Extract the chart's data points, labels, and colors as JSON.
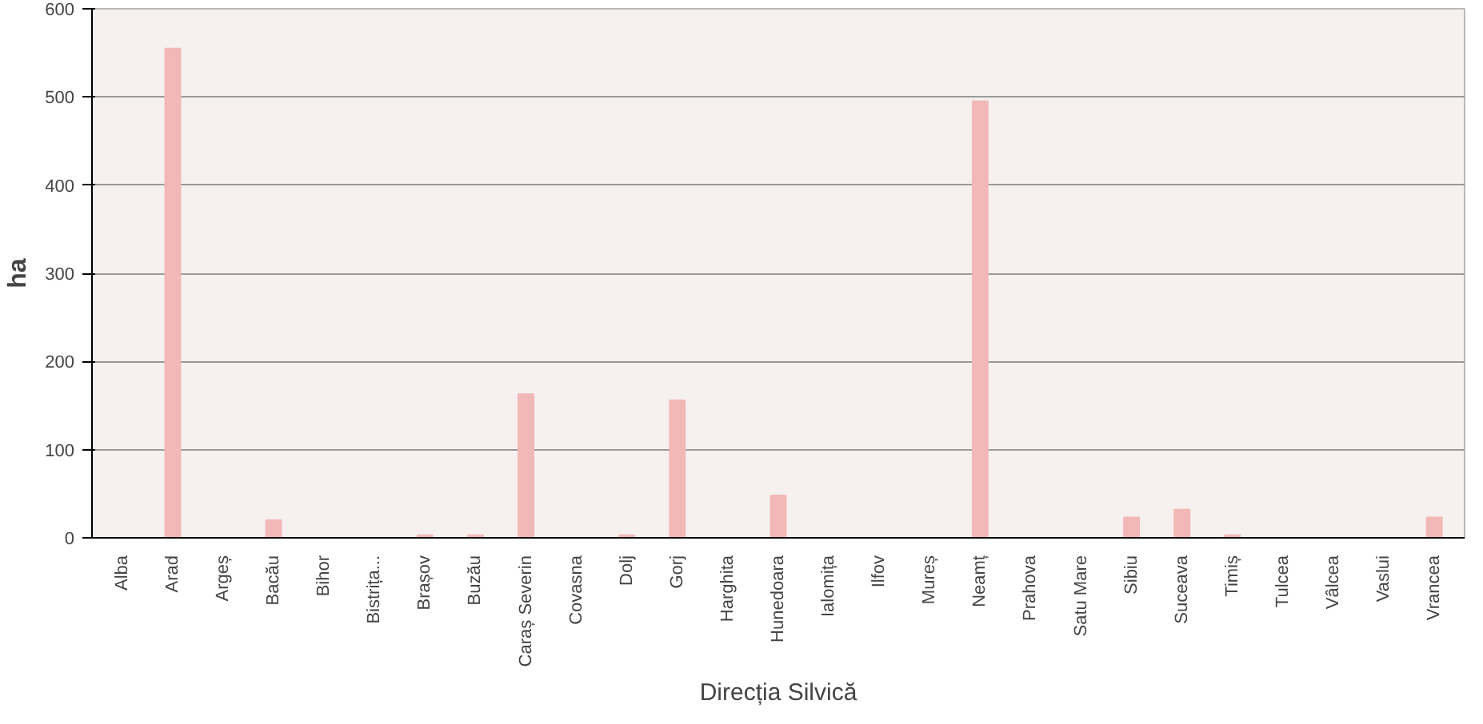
{
  "chart_data": {
    "type": "bar",
    "xlabel": "Direcția Silvică",
    "ylabel": "ha",
    "categories": [
      "Alba",
      "Arad",
      "Argeș",
      "Bacău",
      "Bihor",
      "Bistrița...",
      "Brașov",
      "Buzău",
      "Caraș Severin",
      "Covasna",
      "Dolj",
      "Gorj",
      "Harghita",
      "Hunedoara",
      "Ialomița",
      "Ilfov",
      "Mureș",
      "Neamț",
      "Prahova",
      "Satu Mare",
      "Sibiu",
      "Suceava",
      "Timiș",
      "Tulcea",
      "Vâlcea",
      "Vaslui",
      "Vrancea"
    ],
    "values": [
      0,
      555,
      0,
      20,
      0,
      0,
      3,
      3,
      163,
      0,
      3,
      156,
      0,
      48,
      0,
      0,
      0,
      495,
      0,
      0,
      23,
      32,
      3,
      0,
      0,
      0,
      23
    ],
    "color": "#f2b8b8",
    "ylim": [
      0,
      600
    ],
    "yticks": [
      0,
      100,
      200,
      300,
      400,
      500,
      600
    ],
    "grid": "y"
  }
}
